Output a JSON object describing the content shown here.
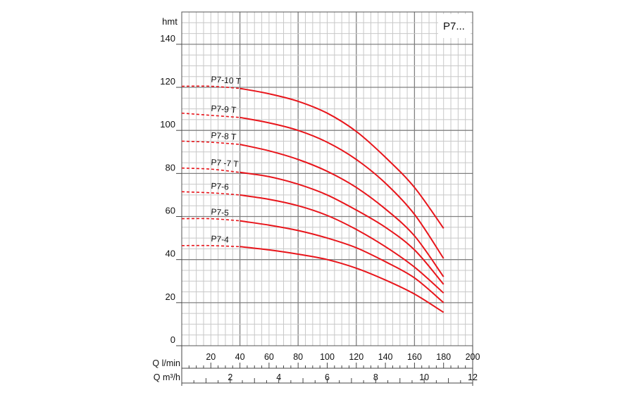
{
  "chart_data": {
    "type": "line",
    "title_box": "P7...",
    "ylabel": "hmt",
    "xlabel_lmin": "Q l/min",
    "xlabel_m3h": "Q m³/h",
    "xlim": [
      0,
      200
    ],
    "ylim": [
      0,
      155
    ],
    "y_ticks": [
      "0",
      "20",
      "40",
      "60",
      "80",
      "100",
      "120",
      "140"
    ],
    "x_ticks_lmin": [
      "20",
      "40",
      "60",
      "80",
      "100",
      "120",
      "140",
      "160",
      "180",
      "200"
    ],
    "x_ticks_m3h": [
      "2",
      "4",
      "6",
      "8",
      "10",
      "12"
    ],
    "dashed_to_x": 40,
    "series": [
      {
        "name": "P7-10 T",
        "x": [
          0,
          20,
          40,
          60,
          80,
          100,
          120,
          140,
          160,
          180
        ],
        "y": [
          120.5,
          120.5,
          119.5,
          117,
          113.5,
          108,
          99.5,
          87.5,
          73.5,
          54.5
        ]
      },
      {
        "name": "P7-9 T",
        "x": [
          0,
          20,
          40,
          60,
          80,
          100,
          120,
          140,
          160,
          180
        ],
        "y": [
          108,
          107,
          106,
          103.5,
          100,
          94.5,
          86.5,
          75.5,
          61,
          40.5
        ]
      },
      {
        "name": "P7-8 T",
        "x": [
          0,
          20,
          40,
          60,
          80,
          100,
          120,
          140,
          160,
          180
        ],
        "y": [
          95,
          94.5,
          93.5,
          90.5,
          86.5,
          81,
          73.5,
          63.5,
          51,
          32
        ]
      },
      {
        "name": "P7 -7 T",
        "x": [
          0,
          20,
          40,
          60,
          80,
          100,
          120,
          140,
          160,
          180
        ],
        "y": [
          82.5,
          82,
          80.5,
          78.5,
          75,
          70,
          63,
          55,
          44.5,
          28.5
        ]
      },
      {
        "name": "P7-6",
        "x": [
          0,
          20,
          40,
          60,
          80,
          100,
          120,
          140,
          160,
          180
        ],
        "y": [
          71.5,
          71,
          70,
          68,
          65,
          60.5,
          54,
          46,
          36.5,
          24.5
        ]
      },
      {
        "name": "P7-5",
        "x": [
          0,
          20,
          40,
          60,
          80,
          100,
          120,
          140,
          160,
          180
        ],
        "y": [
          59,
          59,
          58,
          56,
          53.5,
          50,
          45.5,
          39,
          31.5,
          20
        ]
      },
      {
        "name": "P7-4",
        "x": [
          0,
          20,
          40,
          60,
          80,
          100,
          120,
          140,
          160,
          180
        ],
        "y": [
          46.5,
          46.5,
          46,
          44.5,
          42.5,
          40,
          36,
          30.5,
          24,
          15.5
        ]
      }
    ]
  }
}
